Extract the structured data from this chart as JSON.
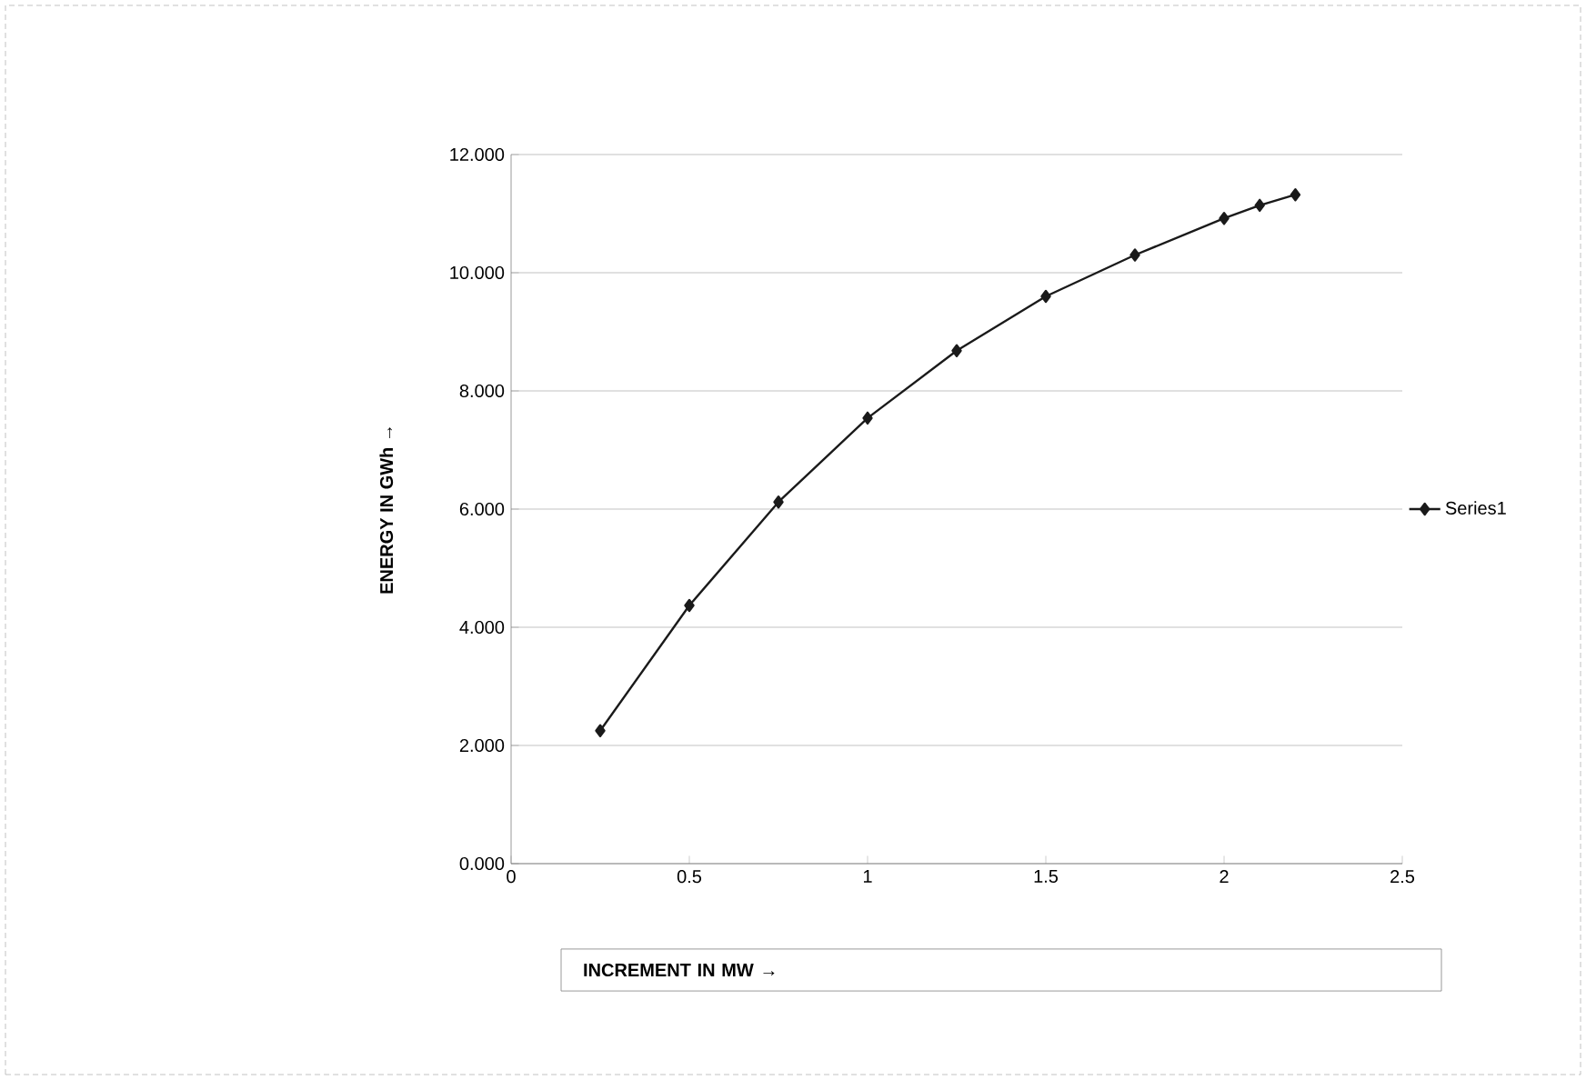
{
  "chart_data": {
    "type": "line",
    "xlabel": "INCREMENT IN MW →",
    "ylabel": "ENERGY IN GWh →",
    "xlim": [
      0,
      2.5
    ],
    "xticks": [
      0,
      0.5,
      1,
      1.5,
      2,
      2.5
    ],
    "ylim": [
      0,
      12
    ],
    "yticks": [
      {
        "value": 0,
        "label": "0.000"
      },
      {
        "value": 2,
        "label": "2.000"
      },
      {
        "value": 4,
        "label": "4.000"
      },
      {
        "value": 6,
        "label": "6.000"
      },
      {
        "value": 8,
        "label": "8.000"
      },
      {
        "value": 10,
        "label": "10.000"
      },
      {
        "value": 12,
        "label": "12.000"
      }
    ],
    "grid": "y",
    "legend": "right",
    "marker": "diamond",
    "line_style": "solid",
    "series": [
      {
        "name": "Series1",
        "color": "#1a1a1a",
        "x": [
          0.25,
          0.5,
          0.75,
          1,
          1.25,
          1.5,
          1.75,
          2,
          2.1,
          2.2
        ],
        "values": [
          2.25,
          4.37,
          6.12,
          7.54,
          8.68,
          9.6,
          10.3,
          10.92,
          11.14,
          11.32
        ]
      }
    ]
  }
}
